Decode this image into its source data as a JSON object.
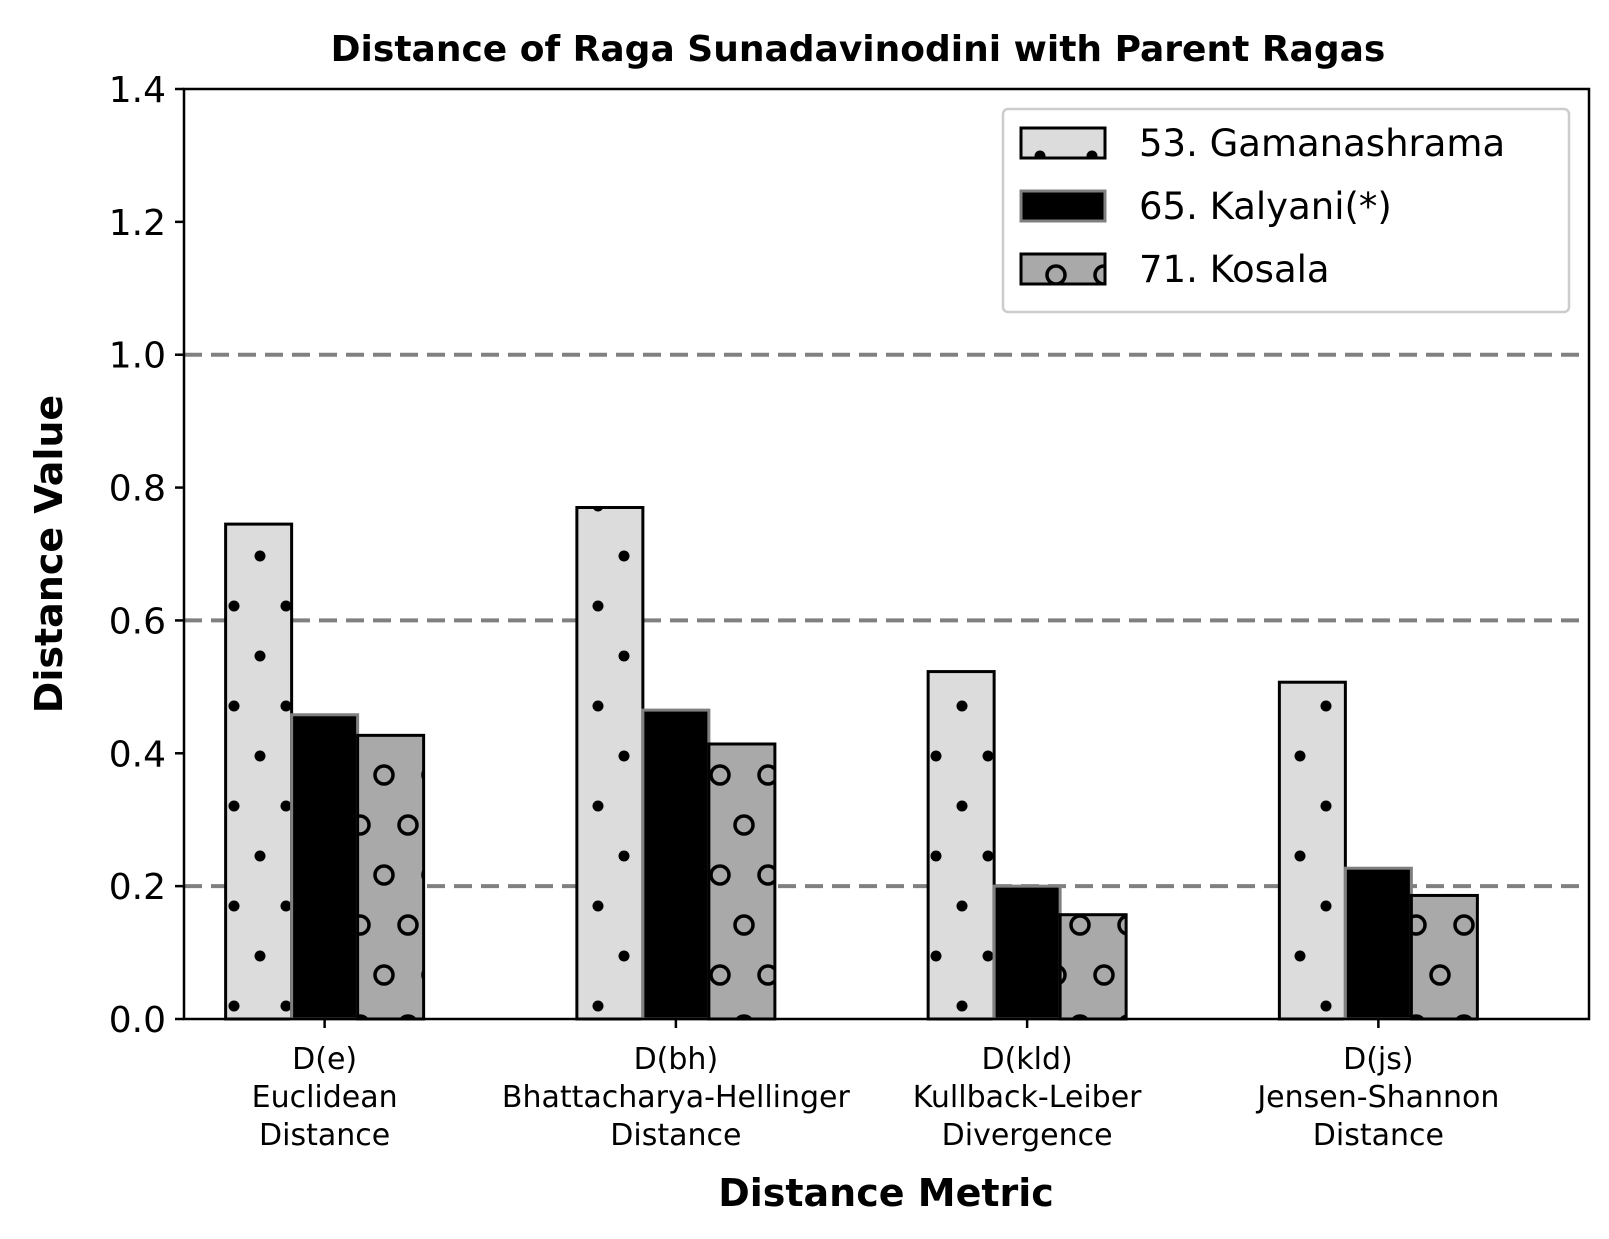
{
  "chart_data": {
    "type": "bar",
    "title": "Distance of Raga Sunadavinodini with Parent Ragas",
    "xlabel": "Distance Metric",
    "ylabel": "Distance Value",
    "ylim": [
      0,
      1.4
    ],
    "yticks": [
      "0.0",
      "0.2",
      "0.4",
      "0.6",
      "0.8",
      "1.0",
      "1.2",
      "1.4"
    ],
    "reference_lines": [
      0.2,
      0.6,
      1.0
    ],
    "categories": [
      [
        "D(e)",
        "Euclidean",
        "Distance"
      ],
      [
        "D(bh)",
        "Bhattacharya-Hellinger",
        "Distance"
      ],
      [
        "D(kld)",
        "Kullback-Leiber",
        "Divergence"
      ],
      [
        "D(js)",
        "Jensen-Shannon",
        "Distance"
      ]
    ],
    "series": [
      {
        "name": "53. Gamanashrama",
        "values": [
          0.745,
          0.77,
          0.523,
          0.507
        ],
        "color": "#dcdcdc",
        "edge": "#000000",
        "pattern": "dots"
      },
      {
        "name": "65. Kalyani(*)",
        "values": [
          0.458,
          0.465,
          0.2,
          0.227
        ],
        "color": "#000000",
        "edge": "#808080",
        "pattern": "none"
      },
      {
        "name": "71. Kosala",
        "values": [
          0.427,
          0.414,
          0.157,
          0.186
        ],
        "color": "#a9a9a9",
        "edge": "#000000",
        "pattern": "circles"
      }
    ],
    "legend_position": "top-right",
    "grid": false
  }
}
